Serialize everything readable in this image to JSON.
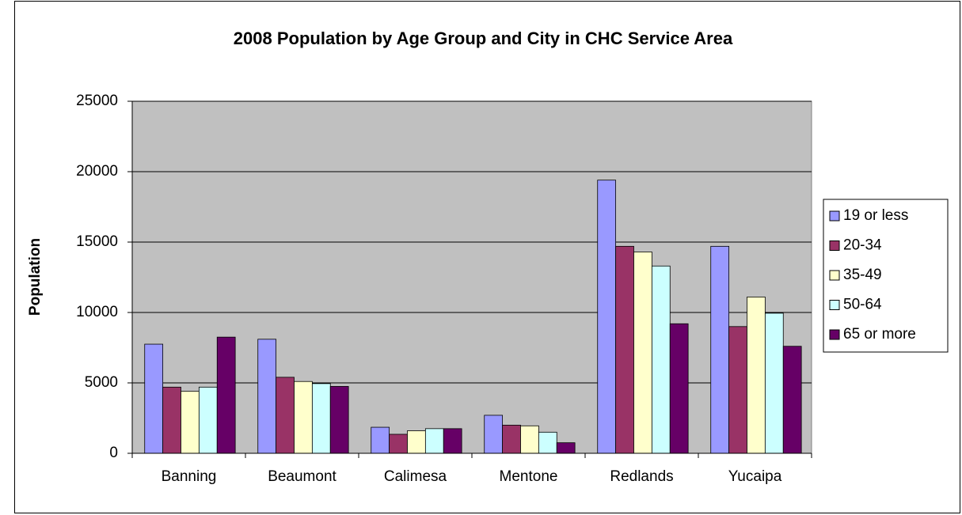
{
  "chart_data": {
    "type": "bar",
    "title": "2008 Population by Age Group and City in CHC Service Area",
    "y_label": "Population",
    "categories": [
      "Banning",
      "Beaumont",
      "Calimesa",
      "Mentone",
      "Redlands",
      "Yucaipa"
    ],
    "series": [
      {
        "name": "19 or less",
        "color": "#9999ff",
        "values": [
          7750,
          8100,
          1850,
          2700,
          19400,
          14700
        ]
      },
      {
        "name": "20-34",
        "color": "#993366",
        "values": [
          4700,
          5400,
          1350,
          2000,
          14700,
          9000
        ]
      },
      {
        "name": "35-49",
        "color": "#ffffcc",
        "values": [
          4400,
          5100,
          1600,
          1950,
          14300,
          11100
        ]
      },
      {
        "name": "50-64",
        "color": "#ccffff",
        "values": [
          4700,
          4950,
          1750,
          1500,
          13300,
          9950
        ]
      },
      {
        "name": "65 or more",
        "color": "#660066",
        "values": [
          8250,
          4750,
          1750,
          750,
          9200,
          7600
        ]
      }
    ],
    "ylim": [
      0,
      25000
    ],
    "yticks": [
      0,
      5000,
      10000,
      15000,
      20000,
      25000
    ],
    "grid": true,
    "legend": "right",
    "plot_background": "#c0c0c0"
  }
}
